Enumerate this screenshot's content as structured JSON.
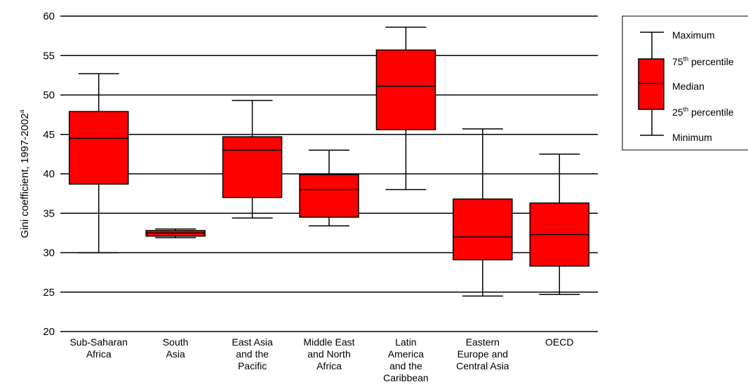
{
  "chart_data": {
    "type": "box",
    "ylabel": "Gini coefficient, 1997-2002",
    "ylabel_superscript": "a",
    "ylim": [
      20,
      60
    ],
    "yticks": [
      20,
      25,
      30,
      35,
      40,
      45,
      50,
      55,
      60
    ],
    "grid": "horizontal",
    "box_color": "#ff0000",
    "legend_position": "top-right",
    "legend": {
      "maximum": "Maximum",
      "p75_num": "75",
      "p75_sup": "th",
      "p75_rest": " percentile",
      "median": "Median",
      "p25_num": "25",
      "p25_sup": "th",
      "p25_rest": " percentile",
      "minimum": "Minimum"
    },
    "categories": [
      {
        "label": [
          "Sub-Saharan",
          "Africa"
        ],
        "min": 30.0,
        "q1": 38.7,
        "median": 44.5,
        "q3": 47.9,
        "max": 52.7
      },
      {
        "label": [
          "South",
          "Asia"
        ],
        "min": 31.9,
        "q1": 32.1,
        "median": 32.5,
        "q3": 32.8,
        "max": 33.0
      },
      {
        "label": [
          "East Asia",
          "and the",
          "Pacific"
        ],
        "min": 34.4,
        "q1": 37.0,
        "median": 43.0,
        "q3": 44.7,
        "max": 49.3
      },
      {
        "label": [
          "Middle East",
          "and North",
          "Africa"
        ],
        "min": 33.4,
        "q1": 34.5,
        "median": 38.0,
        "q3": 39.9,
        "max": 43.0
      },
      {
        "label": [
          "Latin",
          "America",
          "and the",
          "Caribbean"
        ],
        "min": 38.0,
        "q1": 45.6,
        "median": 51.1,
        "q3": 55.7,
        "max": 58.6
      },
      {
        "label": [
          "Eastern",
          "Europe and",
          "Central Asia"
        ],
        "min": 24.5,
        "q1": 29.1,
        "median": 32.0,
        "q3": 36.8,
        "max": 45.7
      },
      {
        "label": [
          "OECD"
        ],
        "min": 24.7,
        "q1": 28.3,
        "median": 32.3,
        "q3": 36.3,
        "max": 42.5
      }
    ]
  }
}
